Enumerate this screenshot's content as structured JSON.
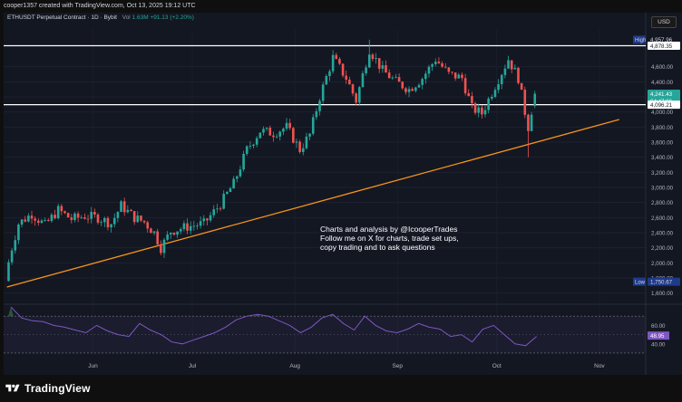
{
  "header": {
    "created_text": "cooper1357 created with TradingView.com, Oct 13, 2025 19:12 UTC"
  },
  "legend": {
    "symbol": "ETHUSDT Perpetual Contract · 1D · Bybit",
    "vol_label": "Vol",
    "vol_value": "1.63M",
    "vol_change": "+91.13 (+2.20%)"
  },
  "currency_badge": "USD",
  "annotation": {
    "line1": "Charts and analysis by @IcooperTrades",
    "line2": "Follow me on X for charts, trade set ups,",
    "line3": "copy trading and to ask questions"
  },
  "footer": {
    "brand": "TradingView"
  },
  "colors": {
    "up": "#26a69a",
    "down": "#ef5350",
    "trendline": "#f7931a",
    "level_line": "#ffffff",
    "rsi_line": "#7e57c2",
    "rsi_fill_over": "#3d8b47"
  },
  "chart_data": {
    "type": "line",
    "title": "ETHUSDT Perpetual Contract · 1D · Bybit",
    "y_axis": {
      "ticks": [
        "4,600.00",
        "4,400.00",
        "4,200.00",
        "4,000.00",
        "3,800.00",
        "3,600.00",
        "3,400.00",
        "3,200.00",
        "3,000.00",
        "2,800.00",
        "2,600.00",
        "2,400.00",
        "2,200.00",
        "2,000.00",
        "1,800.00",
        "1,600.00"
      ],
      "ylim": [
        1500,
        5100
      ]
    },
    "x_axis": {
      "ticks": [
        "Jun",
        "Jul",
        "Aug",
        "Sep",
        "Oct",
        "Nov"
      ]
    },
    "price_labels": {
      "high_label": "High",
      "high_value": "4,957.96",
      "level_upper": "4,878.35",
      "current": "4,241.43",
      "countdown": "04:47:06",
      "level_lower": "4,096.21",
      "low_label": "Low",
      "low_value": "1,750.67"
    },
    "horizontal_levels": [
      4878.35,
      4096.21
    ],
    "trendline": {
      "from": [
        "2025-05-06",
        1680
      ],
      "to": [
        "2025-11-07",
        3900
      ]
    },
    "series": [
      {
        "points": [
          [
            "05-06",
            1820
          ],
          [
            "05-08",
            2200
          ],
          [
            "05-10",
            2520
          ],
          [
            "05-14",
            2650
          ],
          [
            "05-18",
            2500
          ],
          [
            "05-22",
            2700
          ],
          [
            "05-26",
            2580
          ],
          [
            "05-30",
            2620
          ],
          [
            "06-03",
            2600
          ],
          [
            "06-07",
            2520
          ],
          [
            "06-10",
            2760
          ],
          [
            "06-14",
            2600
          ],
          [
            "06-17",
            2540
          ],
          [
            "06-20",
            2400
          ],
          [
            "06-22",
            2200
          ],
          [
            "06-25",
            2420
          ],
          [
            "06-30",
            2480
          ],
          [
            "07-05",
            2520
          ],
          [
            "07-10",
            2780
          ],
          [
            "07-14",
            3050
          ],
          [
            "07-18",
            3500
          ],
          [
            "07-22",
            3750
          ],
          [
            "07-26",
            3720
          ],
          [
            "07-30",
            3800
          ],
          [
            "08-03",
            3500
          ],
          [
            "08-06",
            3700
          ],
          [
            "08-09",
            4200
          ],
          [
            "08-13",
            4720
          ],
          [
            "08-17",
            4450
          ],
          [
            "08-20",
            4150
          ],
          [
            "08-24",
            4830
          ],
          [
            "08-28",
            4550
          ],
          [
            "09-01",
            4400
          ],
          [
            "09-05",
            4300
          ],
          [
            "09-09",
            4450
          ],
          [
            "09-13",
            4700
          ],
          [
            "09-17",
            4500
          ],
          [
            "09-21",
            4450
          ],
          [
            "09-24",
            4050
          ],
          [
            "09-27",
            3980
          ],
          [
            "10-01",
            4350
          ],
          [
            "10-05",
            4700
          ],
          [
            "10-08",
            4450
          ],
          [
            "10-10",
            4000
          ],
          [
            "10-11",
            3800
          ],
          [
            "10-13",
            4241.43
          ]
        ],
        "low_wick": [
          "10-11",
          3400
        ],
        "high_wick": [
          "08-24",
          4957.96
        ]
      }
    ],
    "rsi": {
      "ticks": [
        "60.00",
        "40.00"
      ],
      "current": "48.95",
      "ylim": [
        28,
        80
      ],
      "bands": [
        70,
        30
      ],
      "values": [
        82,
        68,
        65,
        64,
        60,
        58,
        55,
        52,
        60,
        54,
        50,
        48,
        62,
        55,
        50,
        42,
        40,
        44,
        48,
        52,
        58,
        66,
        70,
        72,
        70,
        65,
        60,
        52,
        58,
        68,
        72,
        62,
        55,
        70,
        60,
        54,
        52,
        56,
        62,
        58,
        56,
        48,
        50,
        42,
        56,
        60,
        50,
        40,
        38,
        48
      ]
    }
  }
}
